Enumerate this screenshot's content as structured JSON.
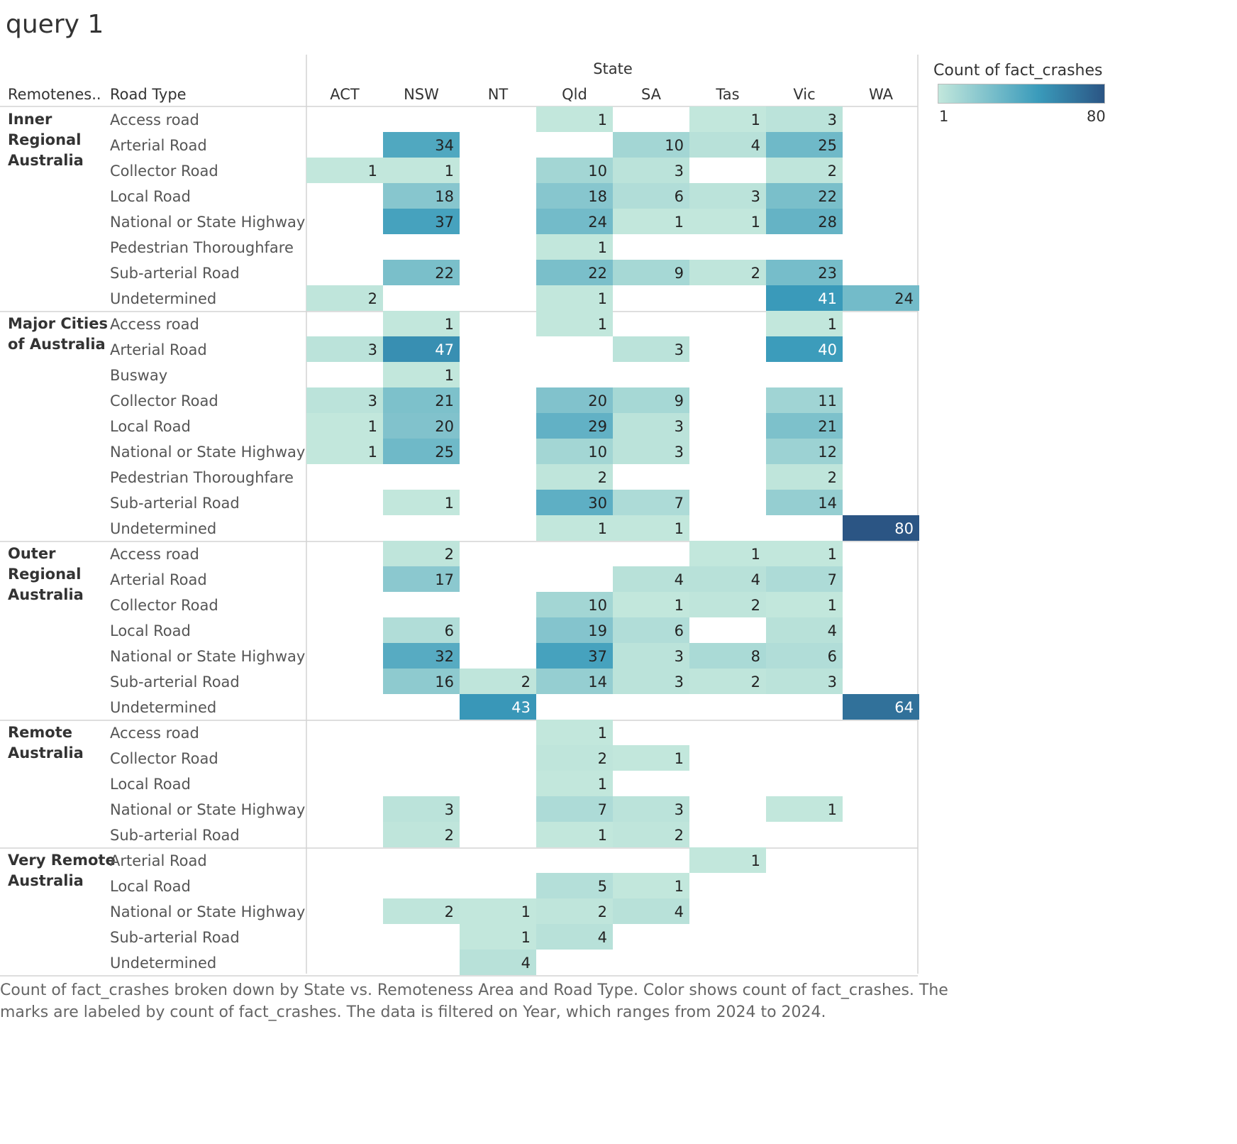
{
  "title": "query 1",
  "chart_data": {
    "type": "heatmap",
    "column_header": "State",
    "row_header_1": "Remotenes..",
    "row_header_2": "Road Type",
    "states": [
      "ACT",
      "NSW",
      "NT",
      "Qld",
      "SA",
      "Tas",
      "Vic",
      "WA"
    ],
    "groups": [
      {
        "name_lines": [
          "Inner",
          "Regional",
          "Australia"
        ],
        "rows": [
          {
            "road": "Access road",
            "values": [
              null,
              null,
              null,
              1,
              null,
              1,
              3,
              null
            ]
          },
          {
            "road": "Arterial Road",
            "values": [
              null,
              34,
              null,
              null,
              10,
              4,
              25,
              null
            ]
          },
          {
            "road": "Collector Road",
            "values": [
              1,
              1,
              null,
              10,
              3,
              null,
              2,
              null
            ]
          },
          {
            "road": "Local Road",
            "values": [
              null,
              18,
              null,
              18,
              6,
              3,
              22,
              null
            ]
          },
          {
            "road": "National or State Highway",
            "values": [
              null,
              37,
              null,
              24,
              1,
              1,
              28,
              null
            ]
          },
          {
            "road": "Pedestrian Thoroughfare",
            "values": [
              null,
              null,
              null,
              1,
              null,
              null,
              null,
              null
            ]
          },
          {
            "road": "Sub-arterial Road",
            "values": [
              null,
              22,
              null,
              22,
              9,
              2,
              23,
              null
            ]
          },
          {
            "road": "Undetermined",
            "values": [
              2,
              null,
              null,
              1,
              null,
              null,
              41,
              24
            ]
          }
        ]
      },
      {
        "name_lines": [
          "Major Cities",
          "of Australia"
        ],
        "rows": [
          {
            "road": "Access road",
            "values": [
              null,
              1,
              null,
              1,
              null,
              null,
              1,
              null
            ]
          },
          {
            "road": "Arterial Road",
            "values": [
              3,
              47,
              null,
              null,
              3,
              null,
              40,
              null
            ]
          },
          {
            "road": "Busway",
            "values": [
              null,
              1,
              null,
              null,
              null,
              null,
              null,
              null
            ]
          },
          {
            "road": "Collector Road",
            "values": [
              3,
              21,
              null,
              20,
              9,
              null,
              11,
              null
            ]
          },
          {
            "road": "Local Road",
            "values": [
              1,
              20,
              null,
              29,
              3,
              null,
              21,
              null
            ]
          },
          {
            "road": "National or State Highway",
            "values": [
              1,
              25,
              null,
              10,
              3,
              null,
              12,
              null
            ]
          },
          {
            "road": "Pedestrian Thoroughfare",
            "values": [
              null,
              null,
              null,
              2,
              null,
              null,
              2,
              null
            ]
          },
          {
            "road": "Sub-arterial Road",
            "values": [
              null,
              1,
              null,
              30,
              7,
              null,
              14,
              null
            ]
          },
          {
            "road": "Undetermined",
            "values": [
              null,
              null,
              null,
              1,
              1,
              null,
              null,
              80
            ]
          }
        ]
      },
      {
        "name_lines": [
          "Outer",
          "Regional",
          "Australia"
        ],
        "rows": [
          {
            "road": "Access road",
            "values": [
              null,
              2,
              null,
              null,
              null,
              1,
              1,
              null
            ]
          },
          {
            "road": "Arterial Road",
            "values": [
              null,
              17,
              null,
              null,
              4,
              4,
              7,
              null
            ]
          },
          {
            "road": "Collector Road",
            "values": [
              null,
              null,
              null,
              10,
              1,
              2,
              1,
              null
            ]
          },
          {
            "road": "Local Road",
            "values": [
              null,
              6,
              null,
              19,
              6,
              null,
              4,
              null
            ]
          },
          {
            "road": "National or State Highway",
            "values": [
              null,
              32,
              null,
              37,
              3,
              8,
              6,
              null
            ]
          },
          {
            "road": "Sub-arterial Road",
            "values": [
              null,
              16,
              2,
              14,
              3,
              2,
              3,
              null
            ]
          },
          {
            "road": "Undetermined",
            "values": [
              null,
              null,
              43,
              null,
              null,
              null,
              null,
              64
            ]
          }
        ]
      },
      {
        "name_lines": [
          "Remote",
          "Australia"
        ],
        "rows": [
          {
            "road": "Access road",
            "values": [
              null,
              null,
              null,
              1,
              null,
              null,
              null,
              null
            ]
          },
          {
            "road": "Collector Road",
            "values": [
              null,
              null,
              null,
              2,
              1,
              null,
              null,
              null
            ]
          },
          {
            "road": "Local Road",
            "values": [
              null,
              null,
              null,
              1,
              null,
              null,
              null,
              null
            ]
          },
          {
            "road": "National or State Highway",
            "values": [
              null,
              3,
              null,
              7,
              3,
              null,
              1,
              null
            ]
          },
          {
            "road": "Sub-arterial Road",
            "values": [
              null,
              2,
              null,
              1,
              2,
              null,
              null,
              null
            ]
          }
        ]
      },
      {
        "name_lines": [
          "Very Remote",
          "Australia"
        ],
        "rows": [
          {
            "road": "Arterial Road",
            "values": [
              null,
              null,
              null,
              null,
              null,
              1,
              null,
              null
            ]
          },
          {
            "road": "Local Road",
            "values": [
              null,
              null,
              null,
              5,
              1,
              null,
              null,
              null
            ]
          },
          {
            "road": "National or State Highway",
            "values": [
              null,
              2,
              1,
              2,
              4,
              null,
              null,
              null
            ]
          },
          {
            "road": "Sub-arterial Road",
            "values": [
              null,
              null,
              1,
              4,
              null,
              null,
              null,
              null
            ]
          },
          {
            "road": "Undetermined",
            "values": [
              null,
              null,
              4,
              null,
              null,
              null,
              null,
              null
            ]
          }
        ]
      }
    ],
    "color_scale": {
      "min": 1,
      "max": 80,
      "colors": [
        "#c2e7dc",
        "#3a9bbb",
        "#2b5584"
      ]
    }
  },
  "legend": {
    "title": "Count of fact_crashes",
    "min_label": "1",
    "max_label": "80"
  },
  "caption_lines": [
    "Count of fact_crashes broken down by State vs. Remoteness Area and Road Type.  Color shows count of fact_crashes.  The",
    "marks are labeled by count of fact_crashes. The data is filtered on Year, which ranges from 2024 to 2024."
  ]
}
